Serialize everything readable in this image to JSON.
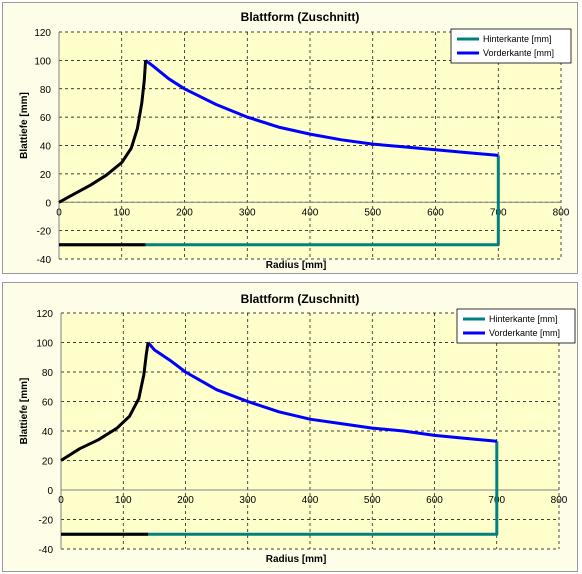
{
  "chart_data": [
    {
      "type": "line",
      "title": "Blattform (Zuschnitt)",
      "xlabel": "Radius [mm]",
      "ylabel": "Blattiefe [mm]",
      "xlim": [
        0,
        800
      ],
      "ylim": [
        -40,
        120
      ],
      "xticks": [
        "0",
        "100",
        "200",
        "300",
        "400",
        "500",
        "600",
        "700",
        "800"
      ],
      "yticks": [
        "-40",
        "-20",
        "0",
        "20",
        "40",
        "60",
        "80",
        "100",
        "120"
      ],
      "grid": true,
      "legend_position": "top-right",
      "series": [
        {
          "name": "Hinterkante [mm]",
          "color": "#008080",
          "points": [
            [
              0,
              -30
            ],
            [
              700,
              -30
            ],
            [
              700,
              33
            ]
          ]
        },
        {
          "name": "Vorderkante [mm]",
          "color": "#0000ff",
          "points": [
            [
              138,
              100
            ],
            [
              150,
              96
            ],
            [
              175,
              87
            ],
            [
              200,
              80
            ],
            [
              250,
              69
            ],
            [
              300,
              60
            ],
            [
              350,
              53
            ],
            [
              400,
              48
            ],
            [
              450,
              44
            ],
            [
              500,
              41
            ],
            [
              550,
              39
            ],
            [
              600,
              37
            ],
            [
              650,
              35
            ],
            [
              700,
              33
            ]
          ]
        },
        {
          "color": "#000000",
          "points": [
            [
              0,
              0
            ],
            [
              25,
              6
            ],
            [
              50,
              12
            ],
            [
              75,
              19
            ],
            [
              100,
              28
            ],
            [
              115,
              38
            ],
            [
              125,
              52
            ],
            [
              132,
              70
            ],
            [
              136,
              86
            ],
            [
              138,
              100
            ]
          ]
        },
        {
          "color": "#000000",
          "points": [
            [
              0,
              -30
            ],
            [
              138,
              -30
            ]
          ]
        }
      ]
    },
    {
      "type": "line",
      "title": "Blattform (Zuschnitt)",
      "xlabel": "Radius [mm]",
      "ylabel": "Blattiefe [mm]",
      "xlim": [
        0,
        800
      ],
      "ylim": [
        -40,
        120
      ],
      "xticks": [
        "0",
        "100",
        "200",
        "300",
        "400",
        "500",
        "600",
        "700",
        "800"
      ],
      "yticks": [
        "-40",
        "-20",
        "0",
        "20",
        "40",
        "60",
        "80",
        "100",
        "120"
      ],
      "grid": true,
      "legend_position": "top-right",
      "series": [
        {
          "name": "Hinterkante [mm]",
          "color": "#008080",
          "points": [
            [
              0,
              -30
            ],
            [
              700,
              -30
            ],
            [
              700,
              33
            ]
          ]
        },
        {
          "name": "Vorderkante [mm]",
          "color": "#0000ff",
          "points": [
            [
              140,
              100
            ],
            [
              150,
              95
            ],
            [
              175,
              88
            ],
            [
              200,
              80
            ],
            [
              250,
              68
            ],
            [
              300,
              60
            ],
            [
              350,
              53
            ],
            [
              400,
              48
            ],
            [
              450,
              45
            ],
            [
              500,
              42
            ],
            [
              550,
              40
            ],
            [
              600,
              37
            ],
            [
              650,
              35
            ],
            [
              700,
              33
            ]
          ]
        },
        {
          "color": "#000000",
          "points": [
            [
              0,
              20
            ],
            [
              30,
              28
            ],
            [
              60,
              34
            ],
            [
              90,
              42
            ],
            [
              110,
              50
            ],
            [
              125,
              62
            ],
            [
              133,
              78
            ],
            [
              137,
              92
            ],
            [
              140,
              100
            ]
          ]
        },
        {
          "color": "#000000",
          "points": [
            [
              0,
              -30
            ],
            [
              140,
              -30
            ]
          ]
        }
      ]
    }
  ]
}
